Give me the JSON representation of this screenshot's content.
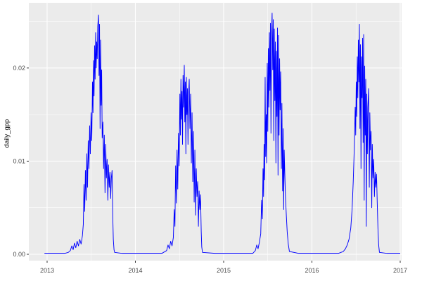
{
  "chart_data": {
    "type": "line",
    "title": "",
    "xlabel": "",
    "ylabel": "daily_gpp",
    "x_ticks": {
      "values": [
        2013,
        2014,
        2015,
        2016,
        2017
      ],
      "labels": [
        "2013",
        "2014",
        "2015",
        "2016",
        "2017"
      ]
    },
    "x_minor_ticks": [
      2013.5,
      2014.5,
      2015.5,
      2016.5
    ],
    "y_ticks": {
      "values": [
        0,
        0.01,
        0.02
      ],
      "labels": [
        "0.00",
        "0.01",
        "0.02"
      ]
    },
    "y_minor_ticks": [
      0.005,
      0.015,
      0.025
    ],
    "xlim": [
      2012.793,
      2017.016
    ],
    "ylim": [
      -0.00068,
      0.027
    ],
    "grid": "major+minor",
    "legend": "none",
    "theme": {
      "background": "#FFFFFF",
      "panel_background": "#EBEBEB",
      "grid_color": "#FFFFFF",
      "tick_color": "#333333",
      "tick_label_color": "#4D4D4D",
      "axis_title_color": "#000000",
      "line_color": "#0000FF"
    },
    "series": [
      {
        "name": "daily_gpp",
        "color": "#0000FF",
        "points": [
          [
            2012.97,
            0.0001
          ],
          [
            2013.1,
            0.0001
          ],
          [
            2013.2,
            0.0001
          ],
          [
            2013.24,
            0.0002
          ],
          [
            2013.263,
            0.0004
          ],
          [
            2013.28,
            0.0009
          ],
          [
            2013.295,
            0.0005
          ],
          [
            2013.31,
            0.0012
          ],
          [
            2013.325,
            0.0007
          ],
          [
            2013.34,
            0.0014
          ],
          [
            2013.355,
            0.0009
          ],
          [
            2013.37,
            0.0016
          ],
          [
            2013.385,
            0.0011
          ],
          [
            2013.4,
            0.002
          ],
          [
            2013.41,
            0.0032
          ],
          [
            2013.418,
            0.0075
          ],
          [
            2013.426,
            0.0046
          ],
          [
            2013.434,
            0.009
          ],
          [
            2013.442,
            0.0058
          ],
          [
            2013.45,
            0.0108
          ],
          [
            2013.458,
            0.0072
          ],
          [
            2013.466,
            0.0122
          ],
          [
            2013.474,
            0.0092
          ],
          [
            2013.482,
            0.0138
          ],
          [
            2013.49,
            0.0108
          ],
          [
            2013.498,
            0.0152
          ],
          [
            2013.506,
            0.0122
          ],
          [
            2013.514,
            0.0185
          ],
          [
            2013.52,
            0.0152
          ],
          [
            2013.526,
            0.0208
          ],
          [
            2013.532,
            0.017
          ],
          [
            2013.538,
            0.0224
          ],
          [
            2013.544,
            0.0188
          ],
          [
            2013.55,
            0.0238
          ],
          [
            2013.556,
            0.02
          ],
          [
            2013.562,
            0.0228
          ],
          [
            2013.568,
            0.021
          ],
          [
            2013.574,
            0.0245
          ],
          [
            2013.582,
            0.0257
          ],
          [
            2013.588,
            0.0192
          ],
          [
            2013.594,
            0.0247
          ],
          [
            2013.6,
            0.0135
          ],
          [
            2013.606,
            0.023
          ],
          [
            2013.612,
            0.016
          ],
          [
            2013.618,
            0.0198
          ],
          [
            2013.624,
            0.0125
          ],
          [
            2013.632,
            0.0142
          ],
          [
            2013.64,
            0.0092
          ],
          [
            2013.648,
            0.0128
          ],
          [
            2013.656,
            0.0066
          ],
          [
            2013.664,
            0.0118
          ],
          [
            2013.672,
            0.0082
          ],
          [
            2013.68,
            0.0102
          ],
          [
            2013.688,
            0.0058
          ],
          [
            2013.696,
            0.0096
          ],
          [
            2013.704,
            0.0072
          ],
          [
            2013.712,
            0.0088
          ],
          [
            2013.72,
            0.006
          ],
          [
            2013.728,
            0.0082
          ],
          [
            2013.736,
            0.009
          ],
          [
            2013.744,
            0.004
          ],
          [
            2013.75,
            0.0016
          ],
          [
            2013.758,
            0.0005
          ],
          [
            2013.765,
            0.0002
          ],
          [
            2013.85,
            0.0001
          ],
          [
            2014.0,
            0.0001
          ],
          [
            2014.15,
            0.0001
          ],
          [
            2014.3,
            0.0001
          ],
          [
            2014.354,
            0.0004
          ],
          [
            2014.37,
            0.001
          ],
          [
            2014.385,
            0.0006
          ],
          [
            2014.4,
            0.0014
          ],
          [
            2014.415,
            0.0009
          ],
          [
            2014.43,
            0.0018
          ],
          [
            2014.44,
            0.0048
          ],
          [
            2014.448,
            0.003
          ],
          [
            2014.456,
            0.0095
          ],
          [
            2014.464,
            0.0055
          ],
          [
            2014.472,
            0.0112
          ],
          [
            2014.48,
            0.007
          ],
          [
            2014.488,
            0.013
          ],
          [
            2014.496,
            0.0095
          ],
          [
            2014.504,
            0.0172
          ],
          [
            2014.51,
            0.0128
          ],
          [
            2014.516,
            0.0188
          ],
          [
            2014.522,
            0.0145
          ],
          [
            2014.528,
            0.0175
          ],
          [
            2014.534,
            0.0118
          ],
          [
            2014.54,
            0.0192
          ],
          [
            2014.546,
            0.0158
          ],
          [
            2014.554,
            0.0203
          ],
          [
            2014.56,
            0.0142
          ],
          [
            2014.566,
            0.0185
          ],
          [
            2014.572,
            0.0108
          ],
          [
            2014.578,
            0.019
          ],
          [
            2014.584,
            0.015
          ],
          [
            2014.59,
            0.0178
          ],
          [
            2014.596,
            0.0118
          ],
          [
            2014.602,
            0.0168
          ],
          [
            2014.61,
            0.0188
          ],
          [
            2014.618,
            0.0135
          ],
          [
            2014.626,
            0.0172
          ],
          [
            2014.634,
            0.0098
          ],
          [
            2014.642,
            0.0152
          ],
          [
            2014.65,
            0.0078
          ],
          [
            2014.658,
            0.0132
          ],
          [
            2014.666,
            0.0056
          ],
          [
            2014.674,
            0.0112
          ],
          [
            2014.682,
            0.0042
          ],
          [
            2014.69,
            0.0092
          ],
          [
            2014.698,
            0.0062
          ],
          [
            2014.706,
            0.0078
          ],
          [
            2014.714,
            0.003
          ],
          [
            2014.722,
            0.0068
          ],
          [
            2014.73,
            0.0048
          ],
          [
            2014.738,
            0.0064
          ],
          [
            2014.746,
            0.0024
          ],
          [
            2014.752,
            0.0008
          ],
          [
            2014.76,
            0.0002
          ],
          [
            2014.9,
            0.0001
          ],
          [
            2015.05,
            0.0001
          ],
          [
            2015.2,
            0.0001
          ],
          [
            2015.33,
            0.0001
          ],
          [
            2015.359,
            0.0004
          ],
          [
            2015.375,
            0.001
          ],
          [
            2015.39,
            0.0006
          ],
          [
            2015.405,
            0.0013
          ],
          [
            2015.42,
            0.0022
          ],
          [
            2015.43,
            0.0058
          ],
          [
            2015.438,
            0.0038
          ],
          [
            2015.446,
            0.0092
          ],
          [
            2015.452,
            0.0062
          ],
          [
            2015.458,
            0.0118
          ],
          [
            2015.464,
            0.008
          ],
          [
            2015.47,
            0.019
          ],
          [
            2015.476,
            0.0105
          ],
          [
            2015.482,
            0.015
          ],
          [
            2015.488,
            0.0098
          ],
          [
            2015.494,
            0.0205
          ],
          [
            2015.5,
            0.0132
          ],
          [
            2015.506,
            0.0221
          ],
          [
            2015.512,
            0.0158
          ],
          [
            2015.518,
            0.0238
          ],
          [
            2015.524,
            0.0176
          ],
          [
            2015.53,
            0.0248
          ],
          [
            2015.536,
            0.013
          ],
          [
            2015.542,
            0.0232
          ],
          [
            2015.549,
            0.0259
          ],
          [
            2015.556,
            0.0198
          ],
          [
            2015.562,
            0.0252
          ],
          [
            2015.568,
            0.0122
          ],
          [
            2015.574,
            0.0242
          ],
          [
            2015.58,
            0.0165
          ],
          [
            2015.586,
            0.0228
          ],
          [
            2015.592,
            0.0098
          ],
          [
            2015.598,
            0.0218
          ],
          [
            2015.604,
            0.0148
          ],
          [
            2015.61,
            0.0243
          ],
          [
            2015.616,
            0.0085
          ],
          [
            2015.622,
            0.0235
          ],
          [
            2015.628,
            0.0128
          ],
          [
            2015.634,
            0.021
          ],
          [
            2015.64,
            0.0155
          ],
          [
            2015.646,
            0.0196
          ],
          [
            2015.654,
            0.0092
          ],
          [
            2015.66,
            0.0162
          ],
          [
            2015.668,
            0.0068
          ],
          [
            2015.674,
            0.0135
          ],
          [
            2015.68,
            0.0048
          ],
          [
            2015.686,
            0.0112
          ],
          [
            2015.693,
            0.0086
          ],
          [
            2015.7,
            0.0062
          ],
          [
            2015.71,
            0.0042
          ],
          [
            2015.72,
            0.0024
          ],
          [
            2015.732,
            0.0011
          ],
          [
            2015.745,
            0.0003
          ],
          [
            2015.85,
            0.0001
          ],
          [
            2016.0,
            0.0001
          ],
          [
            2016.15,
            0.0001
          ],
          [
            2016.3,
            0.0001
          ],
          [
            2016.355,
            0.0003
          ],
          [
            2016.38,
            0.0006
          ],
          [
            2016.4,
            0.001
          ],
          [
            2016.42,
            0.0016
          ],
          [
            2016.44,
            0.0028
          ],
          [
            2016.455,
            0.0048
          ],
          [
            2016.468,
            0.0078
          ],
          [
            2016.476,
            0.0102
          ],
          [
            2016.482,
            0.0122
          ],
          [
            2016.49,
            0.0158
          ],
          [
            2016.496,
            0.0128
          ],
          [
            2016.502,
            0.0185
          ],
          [
            2016.508,
            0.0148
          ],
          [
            2016.514,
            0.0212
          ],
          [
            2016.52,
            0.0168
          ],
          [
            2016.526,
            0.023
          ],
          [
            2016.532,
            0.0185
          ],
          [
            2016.538,
            0.0247
          ],
          [
            2016.544,
            0.0135
          ],
          [
            2016.55,
            0.0225
          ],
          [
            2016.556,
            0.0092
          ],
          [
            2016.562,
            0.0212
          ],
          [
            2016.568,
            0.0168
          ],
          [
            2016.574,
            0.0232
          ],
          [
            2016.58,
            0.012
          ],
          [
            2016.586,
            0.0236
          ],
          [
            2016.592,
            0.0058
          ],
          [
            2016.598,
            0.0202
          ],
          [
            2016.604,
            0.0128
          ],
          [
            2016.61,
            0.0188
          ],
          [
            2016.616,
            0.003
          ],
          [
            2016.622,
            0.0172
          ],
          [
            2016.628,
            0.0108
          ],
          [
            2016.634,
            0.0158
          ],
          [
            2016.642,
            0.0178
          ],
          [
            2016.65,
            0.0072
          ],
          [
            2016.656,
            0.0152
          ],
          [
            2016.664,
            0.0112
          ],
          [
            2016.67,
            0.0132
          ],
          [
            2016.678,
            0.005
          ],
          [
            2016.684,
            0.0118
          ],
          [
            2016.692,
            0.0082
          ],
          [
            2016.7,
            0.0102
          ],
          [
            2016.708,
            0.0062
          ],
          [
            2016.716,
            0.0088
          ],
          [
            2016.724,
            0.0072
          ],
          [
            2016.732,
            0.0086
          ],
          [
            2016.74,
            0.0055
          ],
          [
            2016.748,
            0.0028
          ],
          [
            2016.756,
            0.001
          ],
          [
            2016.765,
            0.0002
          ],
          [
            2016.85,
            0.0001
          ],
          [
            2016.95,
            0.0001
          ],
          [
            2017.0,
            0.0001
          ]
        ]
      }
    ]
  }
}
